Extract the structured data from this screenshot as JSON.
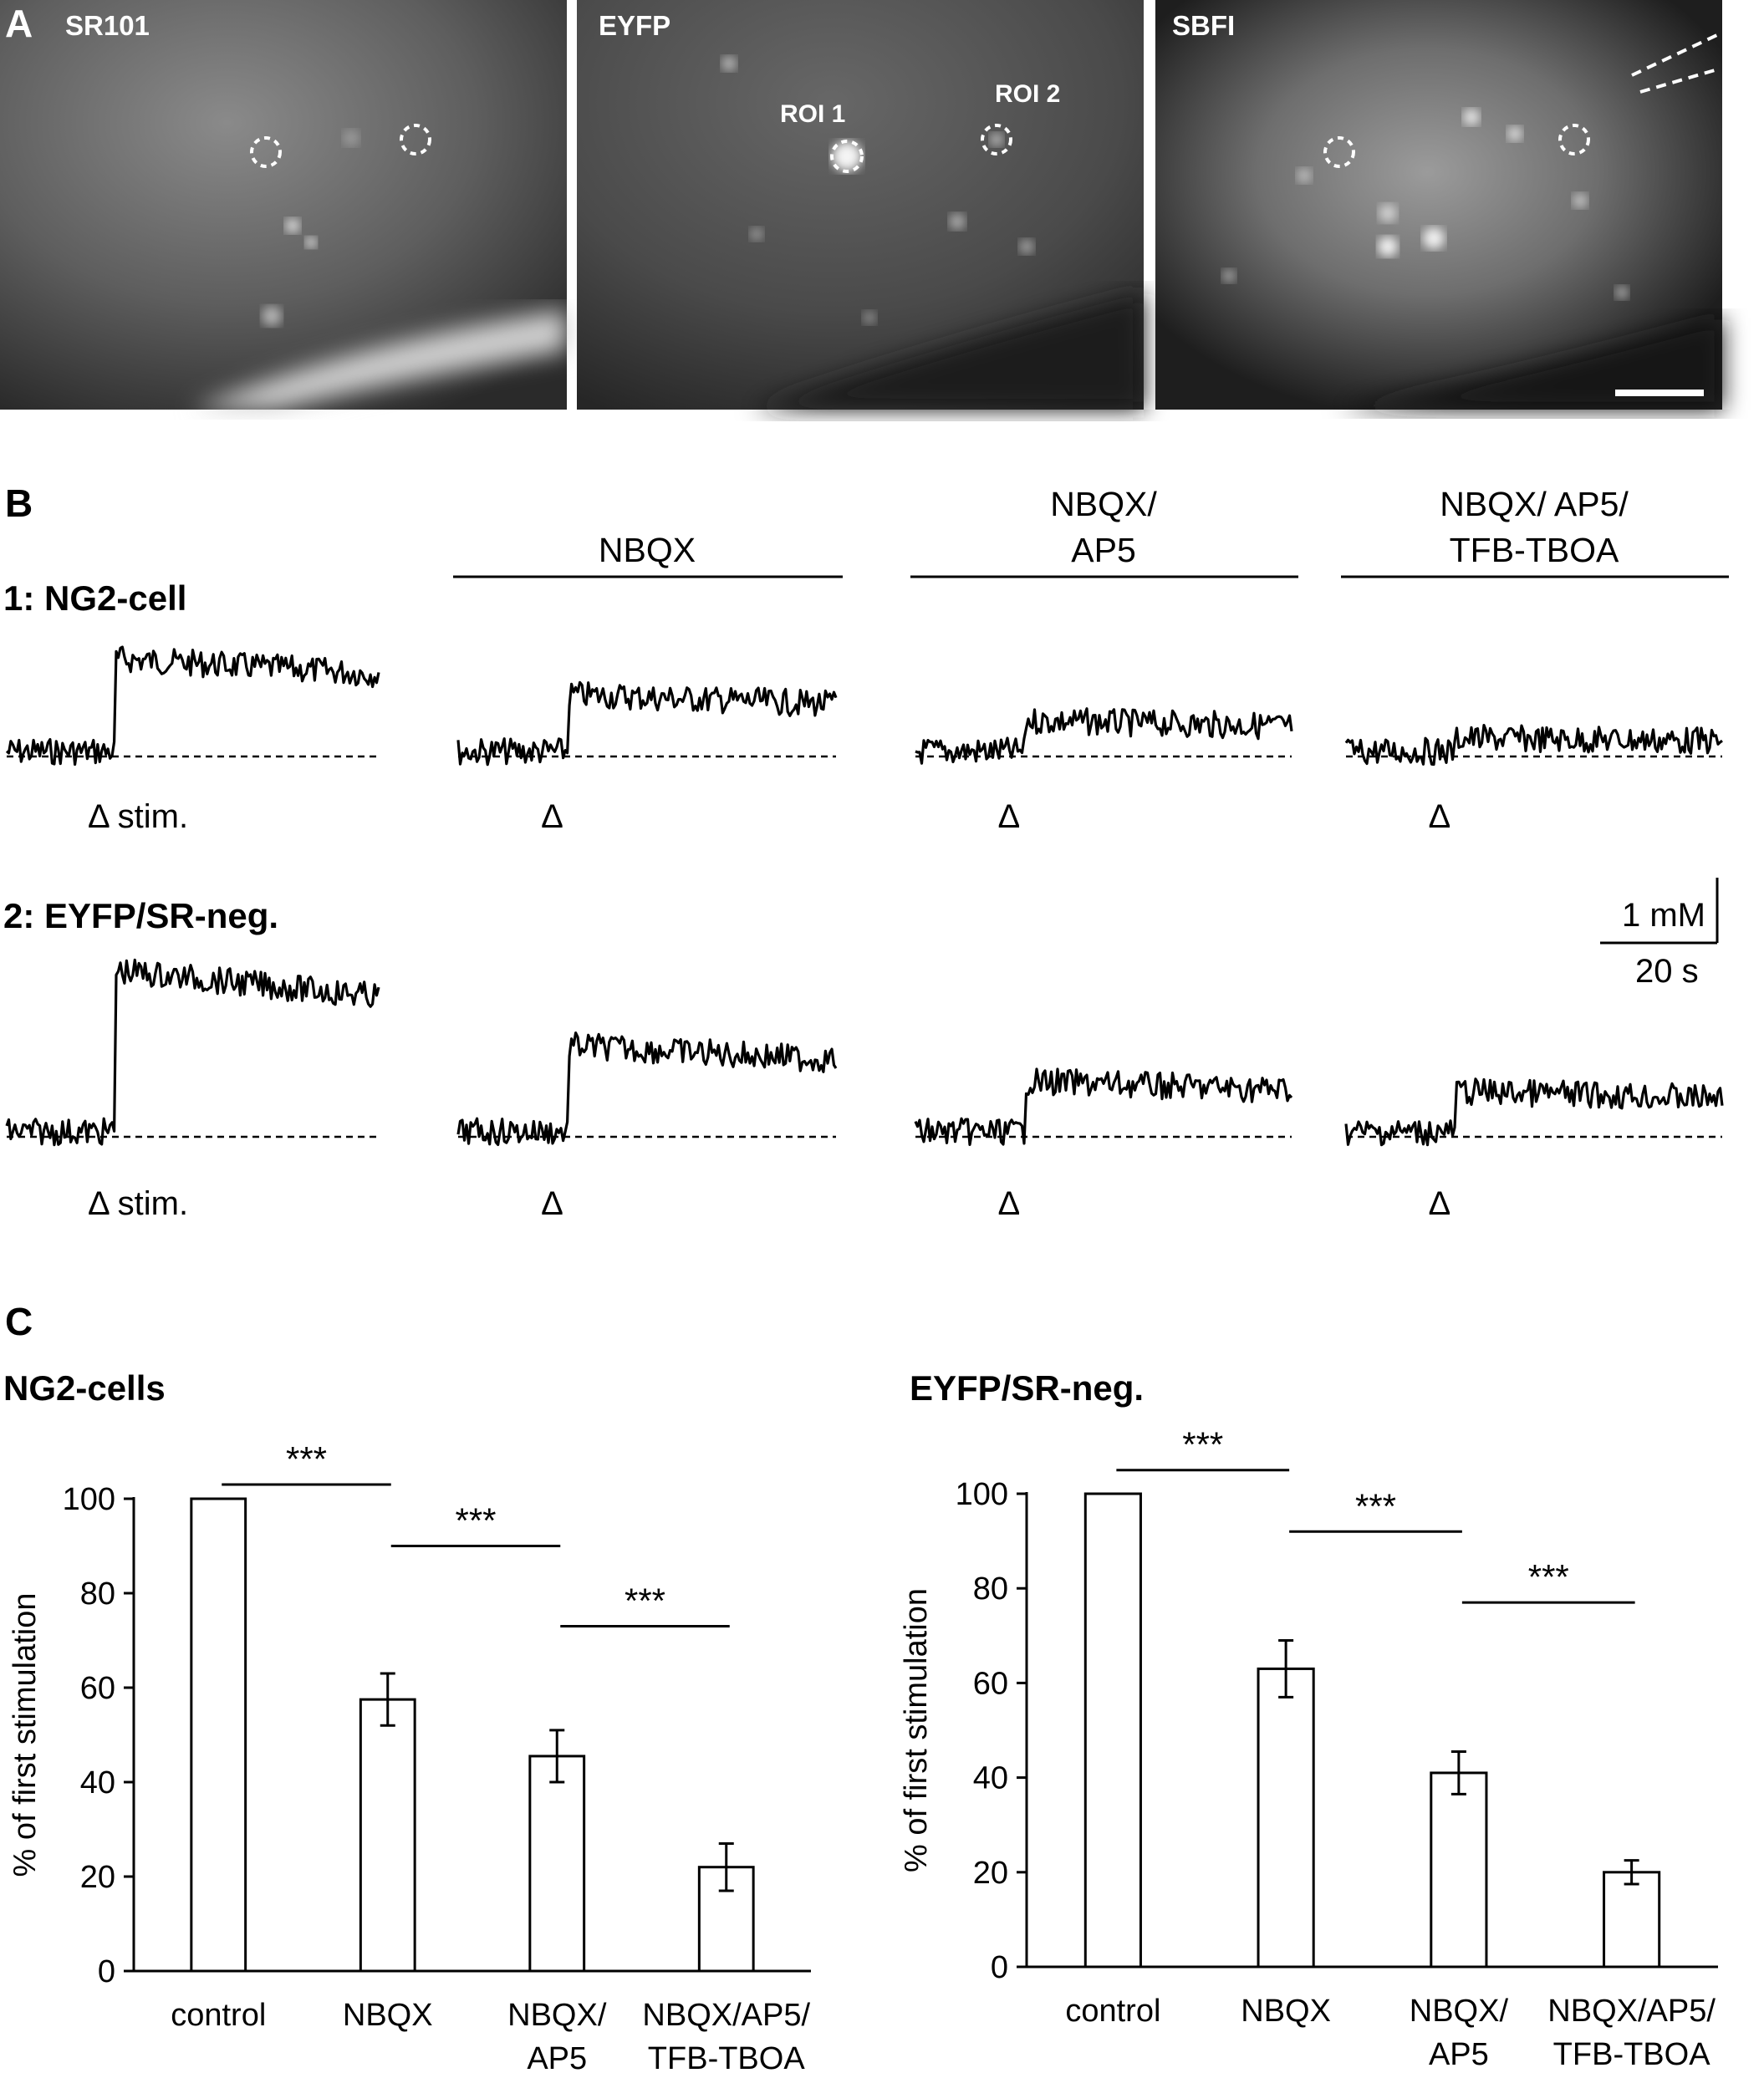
{
  "panel_a": {
    "letter": "A",
    "images": [
      {
        "label": "SR101",
        "rois": [],
        "scale_bar": false,
        "pipette": false
      },
      {
        "label": "EYFP",
        "rois": [
          {
            "label": "ROI 1"
          },
          {
            "label": "ROI 2"
          }
        ],
        "scale_bar": false,
        "pipette": false
      },
      {
        "label": "SBFI",
        "rois": [],
        "scale_bar": true,
        "pipette": true
      }
    ]
  },
  "panel_b": {
    "letter": "B",
    "conditions": [
      {
        "lines": [
          ""
        ]
      },
      {
        "lines": [
          "NBQX"
        ]
      },
      {
        "lines": [
          "NBQX/",
          "AP5"
        ]
      },
      {
        "lines": [
          "NBQX/ AP5/",
          "TFB-TBOA"
        ]
      }
    ],
    "rows": [
      {
        "label": "1: NG2-cell",
        "stim_first": "Δ stim.",
        "stim_other": "Δ",
        "steps_mM": [
          1.5,
          0.95,
          0.55,
          0.28
        ]
      },
      {
        "label": "2: EYFP/SR-neg.",
        "stim_first": "Δ stim.",
        "stim_other": "Δ",
        "steps_mM": [
          2.55,
          1.4,
          0.85,
          0.7
        ]
      }
    ],
    "scale_bar": {
      "conc": "1 mM",
      "time": "20 s"
    }
  },
  "panel_c": {
    "letter": "C",
    "charts": [
      {
        "type": "bar",
        "title": "NG2-cells",
        "ylabel": "% of first stimulation",
        "ylim": [
          0,
          100
        ],
        "yticks": [
          0,
          20,
          40,
          60,
          80,
          100
        ],
        "categories": [
          [
            "control"
          ],
          [
            "NBQX"
          ],
          [
            "NBQX/",
            "AP5"
          ],
          [
            "NBQX/AP5/",
            "TFB-TBOA"
          ]
        ],
        "values": [
          100,
          57.5,
          45.5,
          22
        ],
        "errors": [
          0,
          5.5,
          5.5,
          5
        ],
        "significance": [
          {
            "from": 0,
            "to": 1,
            "label": "***",
            "level": 103
          },
          {
            "from": 1,
            "to": 2,
            "label": "***",
            "level": 90
          },
          {
            "from": 2,
            "to": 3,
            "label": "***",
            "level": 73
          }
        ]
      },
      {
        "type": "bar",
        "title": "EYFP/SR-neg.",
        "ylabel": "% of first stimulation",
        "ylim": [
          0,
          100
        ],
        "yticks": [
          0,
          20,
          40,
          60,
          80,
          100
        ],
        "categories": [
          [
            "control"
          ],
          [
            "NBQX"
          ],
          [
            "NBQX/",
            "AP5"
          ],
          [
            "NBQX/AP5/",
            "TFB-TBOA"
          ]
        ],
        "values": [
          100,
          63,
          41,
          20
        ],
        "errors": [
          0,
          6,
          4.5,
          2.5
        ],
        "significance": [
          {
            "from": 0,
            "to": 1,
            "label": "***",
            "level": 105
          },
          {
            "from": 1,
            "to": 2,
            "label": "***",
            "level": 92
          },
          {
            "from": 2,
            "to": 3,
            "label": "***",
            "level": 77
          }
        ]
      }
    ]
  }
}
